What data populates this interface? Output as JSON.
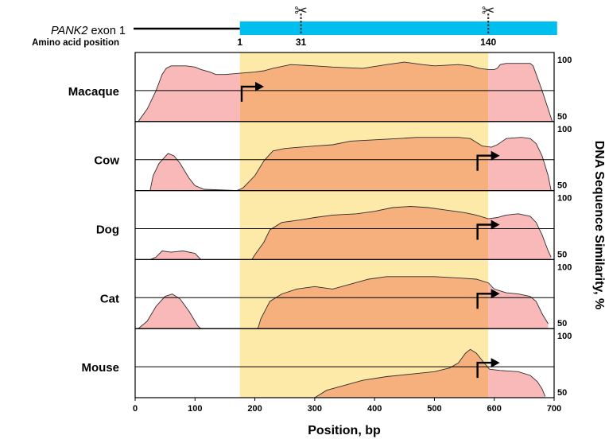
{
  "header": {
    "gene": "PANK2",
    "exon": " exon 1",
    "aa_label": "Amino acid position",
    "aa_markers": [
      {
        "label": "1",
        "position_bp": 175,
        "cut": false
      },
      {
        "label": "31",
        "position_bp": 277,
        "cut": true
      },
      {
        "label": "140",
        "position_bp": 590,
        "cut": true
      }
    ],
    "scissors_glyph": "✂",
    "exon_bar_start_bp": 175,
    "exon_bar_end_bp": 705,
    "exon_bar_color": "#00bfef"
  },
  "chart_data": {
    "type": "area",
    "xlabel": "Position, bp",
    "ylabel": "DNA Sequence Similarity, %",
    "xlim": [
      0,
      700
    ],
    "ylim": [
      50,
      100
    ],
    "xticks": [
      0,
      100,
      200,
      300,
      400,
      500,
      600,
      700
    ],
    "y_midline": 75,
    "highlight_region_bp": [
      175,
      590
    ],
    "colors": {
      "highlight_band": "#fdeaa8",
      "inside_fill": "#f6b07e",
      "outside_fill": "#f9b9b9",
      "grid": "#000000"
    },
    "series": [
      {
        "name": "Macaque",
        "tss_bp": 178,
        "points": [
          [
            5,
            50
          ],
          [
            20,
            60
          ],
          [
            35,
            75
          ],
          [
            45,
            88
          ],
          [
            52,
            93
          ],
          [
            60,
            95
          ],
          [
            85,
            95
          ],
          [
            100,
            94
          ],
          [
            110,
            92
          ],
          [
            125,
            90
          ],
          [
            135,
            88
          ],
          [
            150,
            88
          ],
          [
            175,
            89
          ],
          [
            200,
            90
          ],
          [
            215,
            91
          ],
          [
            230,
            93
          ],
          [
            260,
            96
          ],
          [
            300,
            95
          ],
          [
            330,
            94
          ],
          [
            380,
            93
          ],
          [
            420,
            96
          ],
          [
            450,
            98
          ],
          [
            480,
            96
          ],
          [
            500,
            95
          ],
          [
            540,
            96
          ],
          [
            560,
            95
          ],
          [
            575,
            93
          ],
          [
            590,
            92
          ],
          [
            600,
            92
          ],
          [
            605,
            93
          ],
          [
            610,
            96
          ],
          [
            620,
            97
          ],
          [
            660,
            97
          ],
          [
            665,
            95
          ],
          [
            680,
            75
          ],
          [
            697,
            50
          ]
        ]
      },
      {
        "name": "Cow",
        "tss_bp": 572,
        "points": [
          [
            25,
            50
          ],
          [
            30,
            62
          ],
          [
            40,
            72
          ],
          [
            55,
            80
          ],
          [
            65,
            78
          ],
          [
            75,
            72
          ],
          [
            90,
            60
          ],
          [
            100,
            54
          ],
          [
            115,
            51
          ],
          [
            170,
            50
          ],
          [
            180,
            52
          ],
          [
            200,
            62
          ],
          [
            215,
            74
          ],
          [
            230,
            82
          ],
          [
            250,
            84
          ],
          [
            275,
            85
          ],
          [
            300,
            86
          ],
          [
            330,
            87
          ],
          [
            360,
            90
          ],
          [
            400,
            91
          ],
          [
            440,
            92
          ],
          [
            470,
            93
          ],
          [
            500,
            93
          ],
          [
            540,
            93
          ],
          [
            560,
            92
          ],
          [
            580,
            86
          ],
          [
            595,
            85
          ],
          [
            605,
            87
          ],
          [
            620,
            92
          ],
          [
            645,
            93
          ],
          [
            660,
            92
          ],
          [
            670,
            88
          ],
          [
            680,
            78
          ],
          [
            690,
            62
          ],
          [
            695,
            50
          ]
        ]
      },
      {
        "name": "Dog",
        "tss_bp": 572,
        "points": [
          [
            25,
            50
          ],
          [
            35,
            52
          ],
          [
            45,
            57
          ],
          [
            60,
            56
          ],
          [
            80,
            57
          ],
          [
            100,
            55
          ],
          [
            110,
            50
          ],
          [
            195,
            50
          ],
          [
            200,
            54
          ],
          [
            215,
            64
          ],
          [
            225,
            74
          ],
          [
            245,
            80
          ],
          [
            275,
            82
          ],
          [
            300,
            84
          ],
          [
            330,
            86
          ],
          [
            370,
            87
          ],
          [
            400,
            89
          ],
          [
            430,
            92
          ],
          [
            460,
            93
          ],
          [
            490,
            92
          ],
          [
            520,
            90
          ],
          [
            550,
            88
          ],
          [
            570,
            86
          ],
          [
            590,
            83
          ],
          [
            605,
            84
          ],
          [
            620,
            86
          ],
          [
            640,
            87
          ],
          [
            660,
            85
          ],
          [
            670,
            80
          ],
          [
            680,
            70
          ],
          [
            690,
            57
          ],
          [
            695,
            52
          ]
        ]
      },
      {
        "name": "Cat",
        "tss_bp": 572,
        "points": [
          [
            5,
            50
          ],
          [
            20,
            56
          ],
          [
            35,
            68
          ],
          [
            50,
            76
          ],
          [
            62,
            78
          ],
          [
            75,
            74
          ],
          [
            90,
            64
          ],
          [
            105,
            52
          ],
          [
            110,
            50
          ],
          [
            205,
            50
          ],
          [
            210,
            58
          ],
          [
            225,
            72
          ],
          [
            245,
            78
          ],
          [
            270,
            82
          ],
          [
            300,
            84
          ],
          [
            330,
            82
          ],
          [
            360,
            86
          ],
          [
            390,
            90
          ],
          [
            420,
            92
          ],
          [
            460,
            92
          ],
          [
            500,
            92
          ],
          [
            540,
            91
          ],
          [
            570,
            90
          ],
          [
            590,
            87
          ],
          [
            600,
            82
          ],
          [
            620,
            79
          ],
          [
            640,
            78
          ],
          [
            660,
            76
          ],
          [
            670,
            72
          ],
          [
            680,
            62
          ],
          [
            690,
            54
          ]
        ]
      },
      {
        "name": "Mouse",
        "tss_bp": 572,
        "points": [
          [
            300,
            50
          ],
          [
            320,
            56
          ],
          [
            350,
            60
          ],
          [
            380,
            64
          ],
          [
            420,
            67
          ],
          [
            460,
            69
          ],
          [
            500,
            71
          ],
          [
            525,
            74
          ],
          [
            540,
            78
          ],
          [
            552,
            86
          ],
          [
            560,
            89
          ],
          [
            570,
            86
          ],
          [
            585,
            77
          ],
          [
            592,
            73
          ],
          [
            610,
            72
          ],
          [
            640,
            71
          ],
          [
            660,
            68
          ],
          [
            672,
            63
          ],
          [
            680,
            57
          ],
          [
            685,
            51
          ]
        ]
      }
    ]
  }
}
